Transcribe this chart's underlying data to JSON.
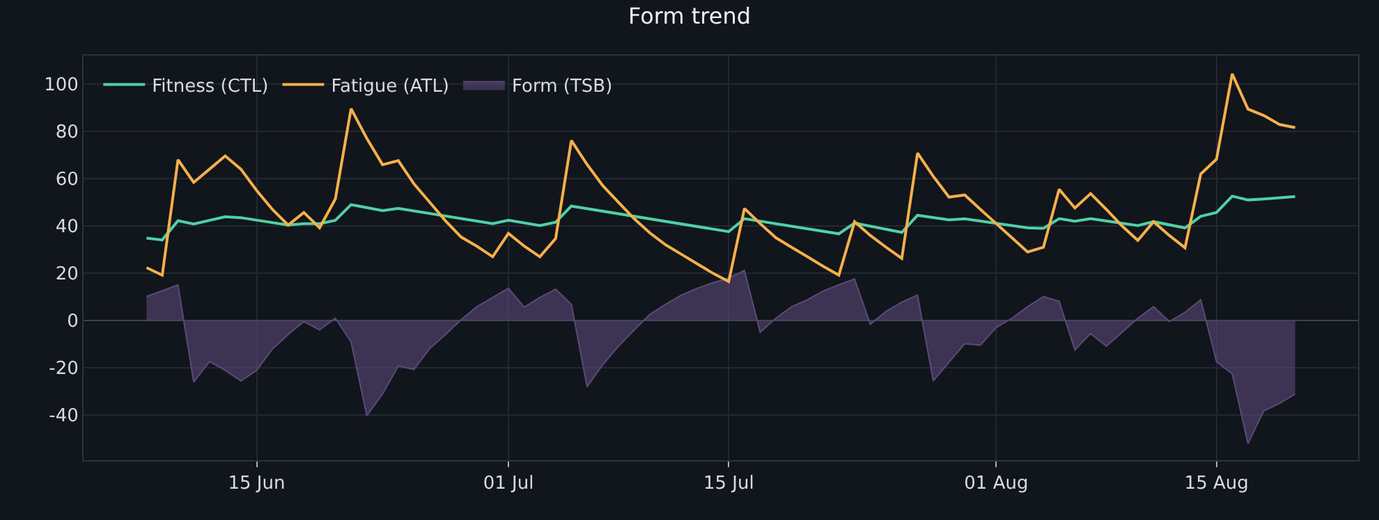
{
  "chart_data": {
    "type": "line",
    "title": "Form trend",
    "x": [
      "--06-08",
      "--06-09",
      "--06-10",
      "--06-11",
      "--06-12",
      "--06-13",
      "--06-14",
      "--06-15",
      "--06-16",
      "--06-17",
      "--06-18",
      "--06-19",
      "--06-20",
      "--06-21",
      "--06-22",
      "--06-23",
      "--06-24",
      "--06-25",
      "--06-26",
      "--06-27",
      "--06-28",
      "--06-29",
      "--06-30",
      "--07-01",
      "--07-02",
      "--07-03",
      "--07-04",
      "--07-05",
      "--07-06",
      "--07-07",
      "--07-08",
      "--07-09",
      "--07-10",
      "--07-11",
      "--07-12",
      "--07-13",
      "--07-14",
      "--07-15",
      "--07-16",
      "--07-17",
      "--07-18",
      "--07-19",
      "--07-20",
      "--07-21",
      "--07-22",
      "--07-23",
      "--07-24",
      "--07-25",
      "--07-26",
      "--07-27",
      "--07-28",
      "--07-29",
      "--07-30",
      "--07-31",
      "--08-01",
      "--08-02",
      "--08-03",
      "--08-04",
      "--08-05",
      "--08-06",
      "--08-07",
      "--08-08",
      "--08-09",
      "--08-10",
      "--08-11",
      "--08-12",
      "--08-13",
      "--08-14",
      "--08-15",
      "--08-16",
      "--08-17",
      "--08-18",
      "--08-19",
      "--08-20"
    ],
    "series": [
      {
        "name": "Fitness (CTL)",
        "color": "#4fd1a5",
        "x": [
          "--06-08",
          "--06-09",
          "--06-10",
          "--06-11",
          "--06-13",
          "--06-14",
          "--06-17",
          "--06-18",
          "--06-19",
          "--06-20",
          "--06-21",
          "--06-23",
          "--06-24",
          "--06-30",
          "--07-01",
          "--07-03",
          "--07-04",
          "--07-05",
          "--07-15",
          "--07-16",
          "--07-22",
          "--07-23",
          "--07-26",
          "--07-27",
          "--07-29",
          "--07-30",
          "--08-03",
          "--08-04",
          "--08-05",
          "--08-06",
          "--08-07",
          "--08-10",
          "--08-11",
          "--08-13",
          "--08-14",
          "--08-15",
          "--08-16",
          "--08-17",
          "--08-18",
          "--08-20"
        ],
        "values": [
          34.9,
          34.1,
          42.2,
          40.8,
          43.9,
          43.5,
          40.4,
          41,
          41,
          42.4,
          49,
          46.5,
          47.4,
          41,
          42.4,
          40.2,
          41.6,
          48.4,
          37.6,
          43.1,
          36.7,
          41.2,
          37.3,
          44.5,
          42.6,
          43,
          39.2,
          39,
          43.1,
          42,
          43.1,
          40.2,
          41.8,
          39.2,
          44.1,
          45.7,
          52.6,
          51,
          51.4,
          52.4
        ]
      },
      {
        "name": "Fatigue (ATL)",
        "color": "#f5b04a",
        "values": [
          22.4,
          19.2,
          68,
          58.4,
          64,
          69.6,
          64,
          55,
          47,
          40.4,
          45.7,
          39.2,
          51.4,
          89.6,
          77,
          65.9,
          67.6,
          57.8,
          50,
          42.2,
          35.3,
          31.4,
          27,
          36.9,
          31.5,
          27,
          34.7,
          76.1,
          66,
          57,
          50,
          43,
          37,
          32,
          28,
          24,
          20,
          16.5,
          47.4,
          41,
          35,
          31,
          27,
          23,
          19.2,
          41.8,
          36,
          31,
          26.3,
          70.8,
          61,
          52.2,
          53.1,
          47,
          41,
          35,
          29,
          31,
          55.5,
          47.6,
          53.7,
          47,
          40,
          33.9,
          41.8,
          36,
          30.8,
          62,
          68.2,
          104.3,
          89.4,
          86.7,
          82.9,
          81.6
        ]
      },
      {
        "name": "Form (TSB)",
        "type": "area",
        "color": "#5b4a78",
        "values": [
          10.2,
          12.6,
          15.1,
          -26,
          -17.3,
          -21,
          -25.5,
          -21,
          -12,
          -5.9,
          -0.4,
          -3.9,
          1,
          -9,
          -40.2,
          -31,
          -19.2,
          -20.6,
          -11.8,
          -5.9,
          0.4,
          5.9,
          9.8,
          13.7,
          5.7,
          9.8,
          13.3,
          6.9,
          -28,
          -18.6,
          -10.8,
          -3.9,
          2.7,
          6.9,
          10.8,
          13.7,
          16,
          18,
          21.2,
          -4.9,
          1,
          5.9,
          8.8,
          12.5,
          15.1,
          17.6,
          -1.6,
          3.9,
          7.8,
          10.8,
          -25.5,
          -17.6,
          -9.8,
          -10.4,
          -2.9,
          1,
          5.9,
          10.2,
          8.2,
          -12.4,
          -5.5,
          -10.8,
          -4.9,
          1,
          5.9,
          -0.4,
          3.5,
          8.8,
          -17.3,
          -22.5,
          -52,
          -38.2,
          -35,
          -31
        ]
      }
    ],
    "xlim": [
      "--06-04",
      "--08-24"
    ],
    "xticks": [
      {
        "value": "--06-15",
        "label": "15 Jun"
      },
      {
        "value": "--07-01",
        "label": "01 Jul"
      },
      {
        "value": "--07-15",
        "label": "15 Jul"
      },
      {
        "value": "--08-01",
        "label": "01 Aug"
      },
      {
        "value": "--08-15",
        "label": "15 Aug"
      }
    ],
    "ylim": [
      -59,
      112
    ],
    "yticks": [
      -40,
      -20,
      0,
      20,
      40,
      60,
      80,
      100
    ],
    "grid": true,
    "legend": "top left"
  }
}
